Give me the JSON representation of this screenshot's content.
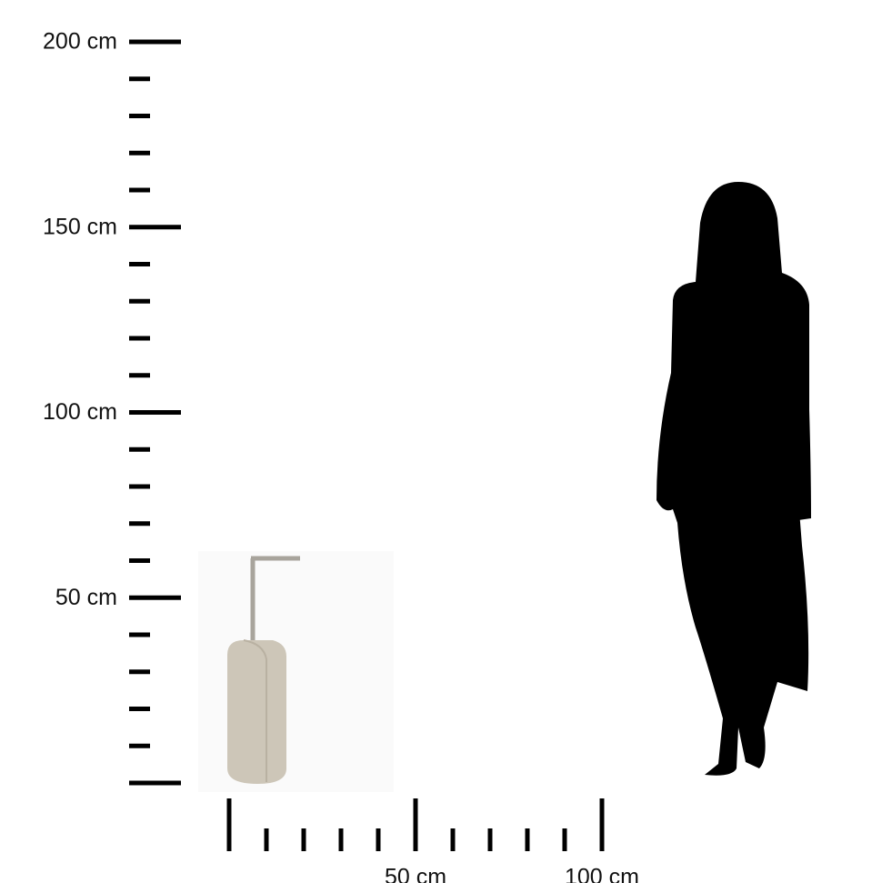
{
  "vertical_scale": {
    "labels": [
      "200 cm",
      "150 cm",
      "100 cm",
      "50 cm"
    ]
  },
  "horizontal_scale": {
    "labels": [
      "50 cm",
      "100 cm"
    ]
  }
}
